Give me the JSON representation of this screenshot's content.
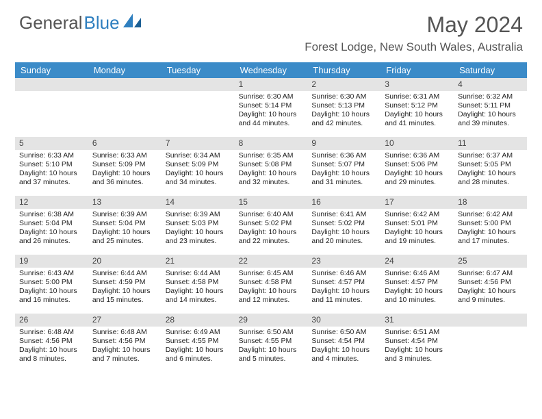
{
  "brand": {
    "part1": "General",
    "part2": "Blue"
  },
  "title": "May 2024",
  "location": "Forest Lodge, New South Wales, Australia",
  "colors": {
    "header_bg": "#3b8bc8",
    "header_text": "#ffffff",
    "daynum_bg": "#e4e4e4",
    "text": "#222222",
    "brand_gray": "#555555",
    "brand_blue": "#2f7fbf",
    "page_bg": "#ffffff"
  },
  "layout": {
    "cols": 7,
    "rows": 5,
    "cell_min_height": 86,
    "body_fontsize": 10.5,
    "daynum_fontsize": 12,
    "dow_fontsize": 13
  },
  "days_of_week": [
    "Sunday",
    "Monday",
    "Tuesday",
    "Wednesday",
    "Thursday",
    "Friday",
    "Saturday"
  ],
  "weeks": [
    [
      {
        "n": "",
        "sunrise": "",
        "sunset": "",
        "daylight": ""
      },
      {
        "n": "",
        "sunrise": "",
        "sunset": "",
        "daylight": ""
      },
      {
        "n": "",
        "sunrise": "",
        "sunset": "",
        "daylight": ""
      },
      {
        "n": "1",
        "sunrise": "Sunrise: 6:30 AM",
        "sunset": "Sunset: 5:14 PM",
        "daylight": "Daylight: 10 hours and 44 minutes."
      },
      {
        "n": "2",
        "sunrise": "Sunrise: 6:30 AM",
        "sunset": "Sunset: 5:13 PM",
        "daylight": "Daylight: 10 hours and 42 minutes."
      },
      {
        "n": "3",
        "sunrise": "Sunrise: 6:31 AM",
        "sunset": "Sunset: 5:12 PM",
        "daylight": "Daylight: 10 hours and 41 minutes."
      },
      {
        "n": "4",
        "sunrise": "Sunrise: 6:32 AM",
        "sunset": "Sunset: 5:11 PM",
        "daylight": "Daylight: 10 hours and 39 minutes."
      }
    ],
    [
      {
        "n": "5",
        "sunrise": "Sunrise: 6:33 AM",
        "sunset": "Sunset: 5:10 PM",
        "daylight": "Daylight: 10 hours and 37 minutes."
      },
      {
        "n": "6",
        "sunrise": "Sunrise: 6:33 AM",
        "sunset": "Sunset: 5:09 PM",
        "daylight": "Daylight: 10 hours and 36 minutes."
      },
      {
        "n": "7",
        "sunrise": "Sunrise: 6:34 AM",
        "sunset": "Sunset: 5:09 PM",
        "daylight": "Daylight: 10 hours and 34 minutes."
      },
      {
        "n": "8",
        "sunrise": "Sunrise: 6:35 AM",
        "sunset": "Sunset: 5:08 PM",
        "daylight": "Daylight: 10 hours and 32 minutes."
      },
      {
        "n": "9",
        "sunrise": "Sunrise: 6:36 AM",
        "sunset": "Sunset: 5:07 PM",
        "daylight": "Daylight: 10 hours and 31 minutes."
      },
      {
        "n": "10",
        "sunrise": "Sunrise: 6:36 AM",
        "sunset": "Sunset: 5:06 PM",
        "daylight": "Daylight: 10 hours and 29 minutes."
      },
      {
        "n": "11",
        "sunrise": "Sunrise: 6:37 AM",
        "sunset": "Sunset: 5:05 PM",
        "daylight": "Daylight: 10 hours and 28 minutes."
      }
    ],
    [
      {
        "n": "12",
        "sunrise": "Sunrise: 6:38 AM",
        "sunset": "Sunset: 5:04 PM",
        "daylight": "Daylight: 10 hours and 26 minutes."
      },
      {
        "n": "13",
        "sunrise": "Sunrise: 6:39 AM",
        "sunset": "Sunset: 5:04 PM",
        "daylight": "Daylight: 10 hours and 25 minutes."
      },
      {
        "n": "14",
        "sunrise": "Sunrise: 6:39 AM",
        "sunset": "Sunset: 5:03 PM",
        "daylight": "Daylight: 10 hours and 23 minutes."
      },
      {
        "n": "15",
        "sunrise": "Sunrise: 6:40 AM",
        "sunset": "Sunset: 5:02 PM",
        "daylight": "Daylight: 10 hours and 22 minutes."
      },
      {
        "n": "16",
        "sunrise": "Sunrise: 6:41 AM",
        "sunset": "Sunset: 5:02 PM",
        "daylight": "Daylight: 10 hours and 20 minutes."
      },
      {
        "n": "17",
        "sunrise": "Sunrise: 6:42 AM",
        "sunset": "Sunset: 5:01 PM",
        "daylight": "Daylight: 10 hours and 19 minutes."
      },
      {
        "n": "18",
        "sunrise": "Sunrise: 6:42 AM",
        "sunset": "Sunset: 5:00 PM",
        "daylight": "Daylight: 10 hours and 17 minutes."
      }
    ],
    [
      {
        "n": "19",
        "sunrise": "Sunrise: 6:43 AM",
        "sunset": "Sunset: 5:00 PM",
        "daylight": "Daylight: 10 hours and 16 minutes."
      },
      {
        "n": "20",
        "sunrise": "Sunrise: 6:44 AM",
        "sunset": "Sunset: 4:59 PM",
        "daylight": "Daylight: 10 hours and 15 minutes."
      },
      {
        "n": "21",
        "sunrise": "Sunrise: 6:44 AM",
        "sunset": "Sunset: 4:58 PM",
        "daylight": "Daylight: 10 hours and 14 minutes."
      },
      {
        "n": "22",
        "sunrise": "Sunrise: 6:45 AM",
        "sunset": "Sunset: 4:58 PM",
        "daylight": "Daylight: 10 hours and 12 minutes."
      },
      {
        "n": "23",
        "sunrise": "Sunrise: 6:46 AM",
        "sunset": "Sunset: 4:57 PM",
        "daylight": "Daylight: 10 hours and 11 minutes."
      },
      {
        "n": "24",
        "sunrise": "Sunrise: 6:46 AM",
        "sunset": "Sunset: 4:57 PM",
        "daylight": "Daylight: 10 hours and 10 minutes."
      },
      {
        "n": "25",
        "sunrise": "Sunrise: 6:47 AM",
        "sunset": "Sunset: 4:56 PM",
        "daylight": "Daylight: 10 hours and 9 minutes."
      }
    ],
    [
      {
        "n": "26",
        "sunrise": "Sunrise: 6:48 AM",
        "sunset": "Sunset: 4:56 PM",
        "daylight": "Daylight: 10 hours and 8 minutes."
      },
      {
        "n": "27",
        "sunrise": "Sunrise: 6:48 AM",
        "sunset": "Sunset: 4:56 PM",
        "daylight": "Daylight: 10 hours and 7 minutes."
      },
      {
        "n": "28",
        "sunrise": "Sunrise: 6:49 AM",
        "sunset": "Sunset: 4:55 PM",
        "daylight": "Daylight: 10 hours and 6 minutes."
      },
      {
        "n": "29",
        "sunrise": "Sunrise: 6:50 AM",
        "sunset": "Sunset: 4:55 PM",
        "daylight": "Daylight: 10 hours and 5 minutes."
      },
      {
        "n": "30",
        "sunrise": "Sunrise: 6:50 AM",
        "sunset": "Sunset: 4:54 PM",
        "daylight": "Daylight: 10 hours and 4 minutes."
      },
      {
        "n": "31",
        "sunrise": "Sunrise: 6:51 AM",
        "sunset": "Sunset: 4:54 PM",
        "daylight": "Daylight: 10 hours and 3 minutes."
      },
      {
        "n": "",
        "sunrise": "",
        "sunset": "",
        "daylight": ""
      }
    ]
  ]
}
